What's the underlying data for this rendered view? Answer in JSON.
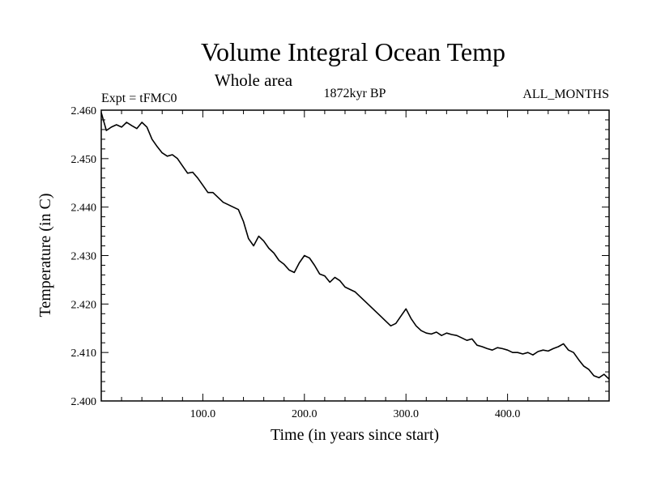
{
  "chart_data": {
    "type": "line",
    "title": "Volume Integral Ocean Temp",
    "subtitle": "Whole area",
    "left_label": "Expt = tFMC0",
    "center_label": "1872kyr BP",
    "right_label": "ALL_MONTHS",
    "xlabel": "Time (in years since start)",
    "ylabel": "Temperature (in C)",
    "xlim": [
      0,
      500
    ],
    "ylim": [
      2.4,
      2.46
    ],
    "x_ticks": [
      100,
      200,
      300,
      400
    ],
    "x_tick_labels": [
      "100.0",
      "200.0",
      "300.0",
      "400.0"
    ],
    "y_ticks": [
      2.4,
      2.41,
      2.42,
      2.43,
      2.44,
      2.45,
      2.46
    ],
    "y_tick_labels": [
      "2.400",
      "2.410",
      "2.420",
      "2.430",
      "2.440",
      "2.450",
      "2.460"
    ],
    "series": [
      {
        "name": "Volume Integral Ocean Temp",
        "x": [
          0,
          5,
          10,
          15,
          20,
          25,
          30,
          35,
          40,
          45,
          50,
          55,
          60,
          65,
          70,
          75,
          80,
          85,
          90,
          95,
          100,
          105,
          110,
          115,
          120,
          125,
          130,
          135,
          140,
          145,
          150,
          155,
          160,
          165,
          170,
          175,
          180,
          185,
          190,
          195,
          200,
          205,
          210,
          215,
          220,
          225,
          230,
          235,
          240,
          245,
          250,
          255,
          260,
          265,
          270,
          275,
          280,
          285,
          290,
          295,
          300,
          305,
          310,
          315,
          320,
          325,
          330,
          335,
          340,
          345,
          350,
          355,
          360,
          365,
          370,
          375,
          380,
          385,
          390,
          395,
          400,
          405,
          410,
          415,
          420,
          425,
          430,
          435,
          440,
          445,
          450,
          455,
          460,
          465,
          470,
          475,
          480,
          485,
          490,
          495,
          500
        ],
        "y": [
          2.4595,
          2.4558,
          2.4565,
          2.457,
          2.4565,
          2.4575,
          2.4568,
          2.4562,
          2.4575,
          2.4565,
          2.454,
          2.4525,
          2.4512,
          2.4505,
          2.4508,
          2.45,
          2.4485,
          2.447,
          2.4472,
          2.446,
          2.4445,
          2.443,
          2.443,
          2.442,
          2.441,
          2.4405,
          2.44,
          2.4395,
          2.437,
          2.4335,
          2.432,
          2.434,
          2.433,
          2.4315,
          2.4305,
          2.429,
          2.4282,
          2.427,
          2.4265,
          2.4285,
          2.43,
          2.4295,
          2.428,
          2.4262,
          2.4258,
          2.4245,
          2.4255,
          2.4248,
          2.4235,
          2.423,
          2.4225,
          2.4215,
          2.4205,
          2.4195,
          2.4185,
          2.4175,
          2.4165,
          2.4155,
          2.416,
          2.4175,
          2.419,
          2.417,
          2.4155,
          2.4145,
          2.414,
          2.4138,
          2.4142,
          2.4135,
          2.414,
          2.4137,
          2.4135,
          2.413,
          2.4125,
          2.4128,
          2.4115,
          2.4112,
          2.4108,
          2.4105,
          2.411,
          2.4108,
          2.4105,
          2.41,
          2.41,
          2.4097,
          2.41,
          2.4095,
          2.4102,
          2.4105,
          2.4103,
          2.4108,
          2.4112,
          2.4118,
          2.4105,
          2.41,
          2.4085,
          2.4072,
          2.4065,
          2.4052,
          2.4048,
          2.4055,
          2.4045
        ]
      }
    ]
  }
}
